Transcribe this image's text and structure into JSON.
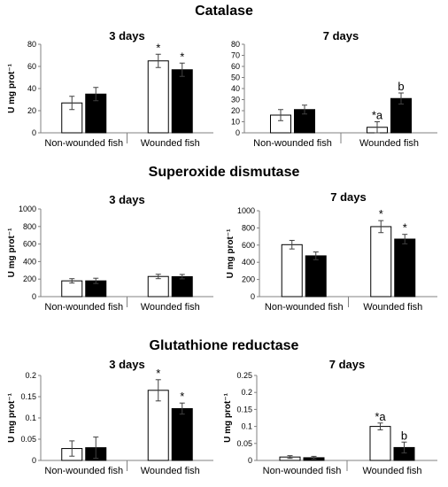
{
  "sections": [
    {
      "title": "Catalase"
    },
    {
      "title": "Superoxide dismutase"
    },
    {
      "title": "Glutathione reductase"
    }
  ],
  "colors": {
    "white_bar": "#ffffff",
    "black_bar": "#000000",
    "axis": "#808080",
    "error": "#404040"
  },
  "chart_data": [
    {
      "type": "bar",
      "section": "Catalase",
      "title": "3 days",
      "ylabel": "U mg prot⁻¹",
      "ylim": [
        0,
        80
      ],
      "yticks": [
        0,
        20,
        40,
        60,
        80
      ],
      "categories": [
        "Non-wounded fish",
        "Wounded fish"
      ],
      "series": [
        {
          "values": [
            27,
            65
          ],
          "errors": [
            6,
            6
          ],
          "color": "#ffffff"
        },
        {
          "values": [
            35,
            57
          ],
          "errors": [
            6,
            6
          ],
          "color": "#000000"
        }
      ],
      "annotations": [
        [
          "",
          ""
        ],
        [
          "*",
          "*"
        ]
      ]
    },
    {
      "type": "bar",
      "section": "Catalase",
      "title": "7 days",
      "ylabel": "",
      "ylim": [
        0,
        80
      ],
      "yticks": [
        0,
        10,
        20,
        30,
        40,
        50,
        60,
        70,
        80
      ],
      "categories": [
        "Non-wounded fish",
        "Wounded fish"
      ],
      "series": [
        {
          "values": [
            16,
            5
          ],
          "errors": [
            5,
            5
          ],
          "color": "#ffffff"
        },
        {
          "values": [
            21,
            31
          ],
          "errors": [
            4,
            5
          ],
          "color": "#000000"
        }
      ],
      "annotations": [
        [
          "",
          ""
        ],
        [
          "*a",
          "b"
        ]
      ]
    },
    {
      "type": "bar",
      "section": "Superoxide dismutase",
      "title": "3 days",
      "ylabel": "U mg prot⁻¹",
      "ylim": [
        0,
        1000
      ],
      "yticks": [
        0,
        200,
        400,
        600,
        800,
        1000
      ],
      "categories": [
        "Non-wounded fish",
        "Wounded fish"
      ],
      "series": [
        {
          "values": [
            180,
            230
          ],
          "errors": [
            25,
            25
          ],
          "color": "#ffffff"
        },
        {
          "values": [
            180,
            228
          ],
          "errors": [
            30,
            25
          ],
          "color": "#000000"
        }
      ],
      "annotations": [
        [
          "",
          ""
        ],
        [
          "",
          ""
        ]
      ]
    },
    {
      "type": "bar",
      "section": "Superoxide dismutase",
      "title": "7 days",
      "ylabel": "U mg prot⁻¹",
      "ylim": [
        0,
        1000
      ],
      "yticks": [
        0,
        200,
        400,
        600,
        800,
        1000
      ],
      "categories": [
        "Non-wounded fish",
        "Wounded fish"
      ],
      "series": [
        {
          "values": [
            605,
            815
          ],
          "errors": [
            50,
            70
          ],
          "color": "#ffffff"
        },
        {
          "values": [
            475,
            670
          ],
          "errors": [
            45,
            55
          ],
          "color": "#000000"
        }
      ],
      "annotations": [
        [
          "",
          ""
        ],
        [
          "*",
          "*"
        ]
      ]
    },
    {
      "type": "bar",
      "section": "Glutathione reductase",
      "title": "3 days",
      "ylabel": "U mg prot⁻¹",
      "ylim": [
        0,
        0.2
      ],
      "yticks": [
        0,
        0.05,
        0.1,
        0.15,
        0.2
      ],
      "categories": [
        "Non-wounded fish",
        "Wounded fish"
      ],
      "series": [
        {
          "values": [
            0.028,
            0.165
          ],
          "errors": [
            0.018,
            0.025
          ],
          "color": "#ffffff"
        },
        {
          "values": [
            0.03,
            0.122
          ],
          "errors": [
            0.025,
            0.013
          ],
          "color": "#000000"
        }
      ],
      "annotations": [
        [
          "",
          ""
        ],
        [
          "*",
          "*"
        ]
      ]
    },
    {
      "type": "bar",
      "section": "Glutathione reductase",
      "title": "7 days",
      "ylabel": "U mg prot⁻¹",
      "ylim": [
        0,
        0.25
      ],
      "yticks": [
        0,
        0.05,
        0.1,
        0.15,
        0.2,
        0.25
      ],
      "categories": [
        "Non-wounded fish",
        "Wounded fish"
      ],
      "series": [
        {
          "values": [
            0.01,
            0.1
          ],
          "errors": [
            0.004,
            0.01
          ],
          "color": "#ffffff"
        },
        {
          "values": [
            0.008,
            0.038
          ],
          "errors": [
            0.004,
            0.016
          ],
          "color": "#000000"
        }
      ],
      "annotations": [
        [
          "",
          ""
        ],
        [
          "*a",
          "b"
        ]
      ]
    }
  ]
}
